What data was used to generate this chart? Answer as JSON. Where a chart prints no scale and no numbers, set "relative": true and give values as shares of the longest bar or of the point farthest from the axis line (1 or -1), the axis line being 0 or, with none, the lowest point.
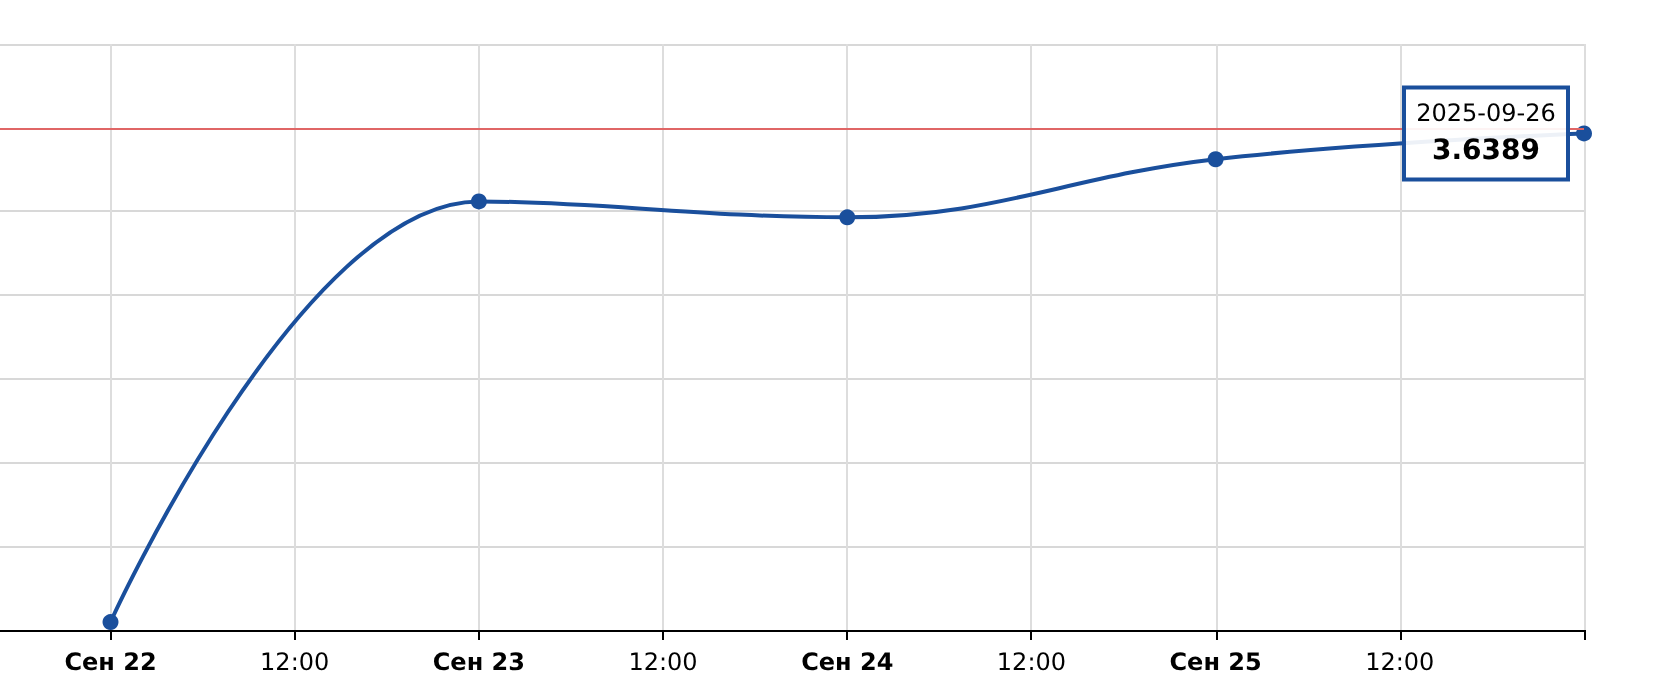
{
  "chart_data": {
    "type": "line",
    "relative": true,
    "x": [
      "2025-09-22",
      "2025-09-23",
      "2025-09-24",
      "2025-09-25",
      "2025-09-26"
    ],
    "xlim": [
      "2025-09-21T16:48",
      "2025-09-26"
    ],
    "xticks": [
      {
        "value": "2025-09-22",
        "label": "Сен 22"
      },
      {
        "value": "2025-09-22T12:00",
        "label": "12:00"
      },
      {
        "value": "2025-09-23",
        "label": "Сен 23"
      },
      {
        "value": "2025-09-23T12:00",
        "label": "12:00"
      },
      {
        "value": "2025-09-24",
        "label": "Сен 24"
      },
      {
        "value": "2025-09-24T12:00",
        "label": "12:00"
      },
      {
        "value": "2025-09-25",
        "label": "Сен 25"
      },
      {
        "value": "2025-09-25T12:00",
        "label": "12:00"
      },
      {
        "value": "2025-09-26",
        "label": null
      }
    ],
    "series": [
      {
        "color": "#1a4f9c",
        "values": [
          0.016,
          0.863,
          0.831,
          0.948,
          1
        ]
      }
    ],
    "ref_lines": [
      {
        "axis": "y",
        "value": 1.012,
        "color": "#e06666"
      }
    ],
    "annotations": [
      {
        "text": "2025-09-26",
        "x": "2025-09-26",
        "y": 1
      },
      {
        "text": "3.6389",
        "x": "2025-09-26",
        "y": 1
      }
    ],
    "marker": "circle",
    "line_style": "solid",
    "grid": true,
    "tick_labels": "x"
  }
}
